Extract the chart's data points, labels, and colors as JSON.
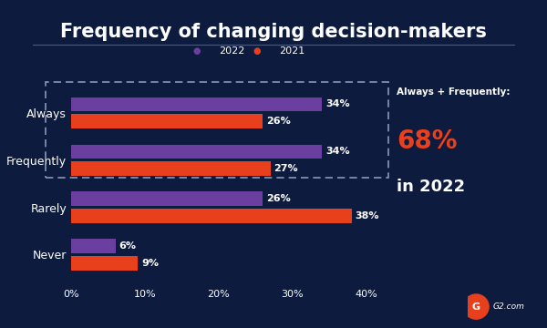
{
  "title": "Frequency of changing decision-makers",
  "background_color": "#0d1b3e",
  "bar_color_2022": "#6b3fa0",
  "bar_color_2021": "#e8401c",
  "categories": [
    "Always",
    "Frequently",
    "Rarely",
    "Never"
  ],
  "values_2022": [
    34,
    34,
    26,
    6
  ],
  "values_2021": [
    26,
    27,
    38,
    9
  ],
  "xlim": [
    0,
    43
  ],
  "xticks": [
    0,
    10,
    20,
    30,
    40
  ],
  "xtick_labels": [
    "0%",
    "10%",
    "20%",
    "30%",
    "40%"
  ],
  "legend_2022": "2022",
  "legend_2021": "2021",
  "annotation_text1": "Always + Frequently:",
  "annotation_pct": "68%",
  "annotation_text2": "in 2022",
  "text_color": "#ffffff",
  "pct_color": "#e8401c",
  "title_fontsize": 15,
  "bar_label_fontsize": 8,
  "ytick_fontsize": 9,
  "xtick_fontsize": 8,
  "legend_fontsize": 8
}
